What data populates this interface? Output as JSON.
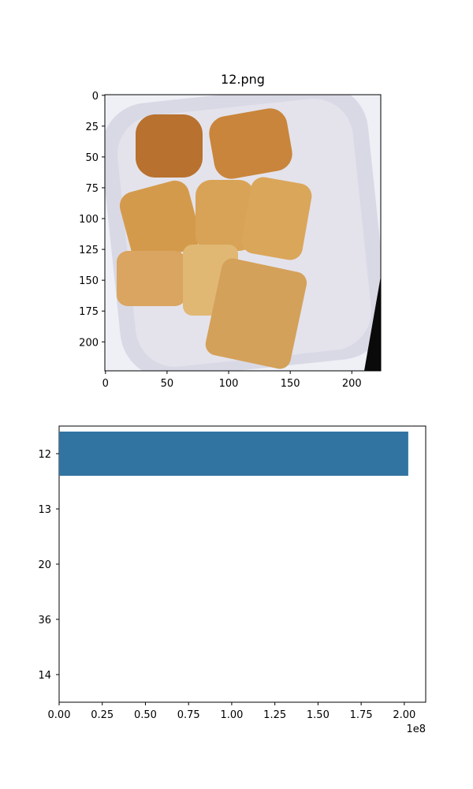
{
  "chart_data": [
    {
      "type": "image",
      "title": "12.png",
      "xlim": [
        -0.5,
        223.5
      ],
      "ylim": [
        223.5,
        -0.5
      ],
      "xticks": [
        0,
        50,
        100,
        150,
        200
      ],
      "yticks": [
        0,
        25,
        50,
        75,
        100,
        125,
        150,
        175,
        200
      ]
    },
    {
      "type": "barh",
      "categories": [
        "12",
        "13",
        "20",
        "36",
        "14"
      ],
      "values": [
        202300000,
        0,
        0,
        0,
        0
      ],
      "color": "#3274a1",
      "xlim": [
        0,
        212400000
      ],
      "ylim": [
        4.5,
        -0.5
      ],
      "xticks": [
        {
          "value": 0,
          "label": "0.00"
        },
        {
          "value": 25000000,
          "label": "0.25"
        },
        {
          "value": 50000000,
          "label": "0.50"
        },
        {
          "value": 75000000,
          "label": "0.75"
        },
        {
          "value": 100000000,
          "label": "1.00"
        },
        {
          "value": 125000000,
          "label": "1.25"
        },
        {
          "value": 150000000,
          "label": "1.50"
        },
        {
          "value": 175000000,
          "label": "1.75"
        },
        {
          "value": 200000000,
          "label": "2.00"
        }
      ],
      "offset_text": "1e8"
    }
  ]
}
